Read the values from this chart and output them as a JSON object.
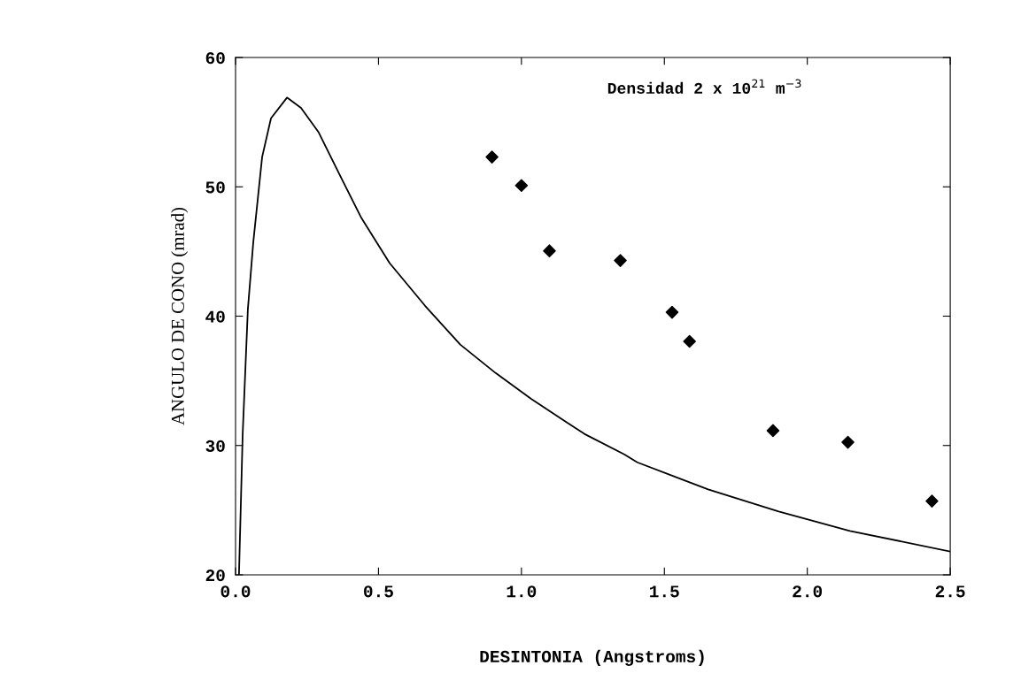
{
  "chart_data": {
    "type": "scatter",
    "xlabel": "DESINTONIA (Angstroms)",
    "ylabel": "ANGULO DE CONO (mrad)",
    "annotations": [
      "Densidad 2 x 10$^{21}$ m$^{−3}$"
    ],
    "xlim": [
      0,
      2.5
    ],
    "ylim": [
      20,
      60
    ],
    "xticks": [
      {
        "value": 0,
        "label": "0.0"
      },
      {
        "value": 0.5,
        "label": "0.5"
      },
      {
        "value": 1,
        "label": "1.0"
      },
      {
        "value": 1.5,
        "label": "1.5"
      },
      {
        "value": 2,
        "label": "2.0"
      },
      {
        "value": 2.5,
        "label": "2.5"
      }
    ],
    "yticks": [
      20,
      30,
      40,
      50,
      60
    ],
    "grid": false,
    "legend": false,
    "series": [
      {
        "type": "line",
        "color": "#000000",
        "marker": "none",
        "line_style": "solid",
        "x": [
          0.012,
          0.025,
          0.043,
          0.062,
          0.093,
          0.124,
          0.18,
          0.229,
          0.291,
          0.365,
          0.44,
          0.539,
          0.663,
          0.786,
          0.91,
          1.034,
          1.158,
          1.22,
          1.361,
          1.405,
          1.653,
          1.9,
          2.149,
          2.5
        ],
        "values": [
          20,
          30.9,
          40.5,
          45.7,
          52.3,
          55.3,
          56.9,
          56.1,
          54.2,
          50.9,
          47.6,
          44.1,
          40.8,
          37.8,
          35.6,
          33.6,
          31.8,
          30.9,
          29.3,
          28.7,
          26.6,
          24.9,
          23.4,
          21.8
        ]
      },
      {
        "color": "#000000",
        "marker": "diamond",
        "x": [
          0.897,
          1.0,
          1.098,
          1.346,
          1.527,
          1.588,
          1.88,
          2.142,
          2.436
        ],
        "values": [
          52.3,
          50.1,
          45.05,
          44.3,
          40.3,
          38.05,
          31.15,
          30.25,
          25.7
        ]
      }
    ]
  }
}
